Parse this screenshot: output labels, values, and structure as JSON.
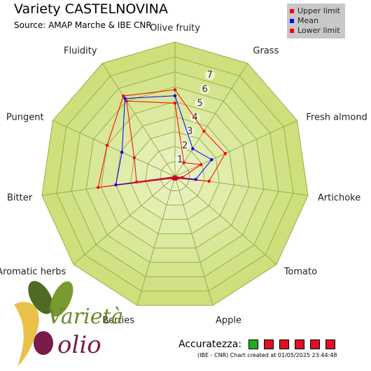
{
  "title": "Variety CASTELNOVINA",
  "subtitle": "Source: AMAP Marche & IBE CNR",
  "legend": [
    {
      "label": "Upper limit",
      "color": "#ff0000"
    },
    {
      "label": "Mean",
      "color": "#0000ff"
    },
    {
      "label": "Lower limit",
      "color": "#ff0000"
    }
  ],
  "colors": {
    "upper": "#ff0000",
    "mean": "#0000ff",
    "lower": "#ff0000",
    "band_outer": "#cde07c",
    "band_inner": "#eef5cf",
    "grid": "#9aae4a"
  },
  "chart_data": {
    "type": "radar",
    "title": "Variety CASTELNOVINA",
    "subtitle": "Source: AMAP Marche & IBE CNR",
    "axes": [
      "Olive fruity",
      "Grass",
      "Fresh almond",
      "Artichoke",
      "Tomato",
      "Apple",
      "Berries",
      "Aromatic herbs",
      "Bitter",
      "Pungent",
      "Fluidity"
    ],
    "scale_labels": [
      "1",
      "2",
      "3",
      "4",
      "5",
      "6",
      "7"
    ],
    "range": [
      0,
      9
    ],
    "series": [
      {
        "name": "Upper limit",
        "color": "#ff0000",
        "values": [
          5.8,
          3.6,
          3.7,
          2.3,
          0.2,
          0.2,
          0.2,
          0.2,
          5.2,
          5.0,
          6.4
        ]
      },
      {
        "name": "Mean",
        "color": "#0000ff",
        "values": [
          5.4,
          2.2,
          2.7,
          1.4,
          0.1,
          0.1,
          0.1,
          0.1,
          4.0,
          3.9,
          6.2
        ]
      },
      {
        "name": "Lower limit",
        "color": "#ff0000",
        "values": [
          4.9,
          1.1,
          1.9,
          0.5,
          0.05,
          0.05,
          0.05,
          0.05,
          2.6,
          3.0,
          6.0
        ]
      }
    ]
  },
  "accuracy": {
    "label": "Accuratezza:",
    "boxes": [
      "#22aa22",
      "#dd1122",
      "#dd1122",
      "#dd1122",
      "#dd1122",
      "#dd1122"
    ]
  },
  "footer": "(IBE - CNR) Chart created at 01/05/2025 23:44:48",
  "logo": {
    "line1": "Varietà",
    "line2": "olio"
  }
}
